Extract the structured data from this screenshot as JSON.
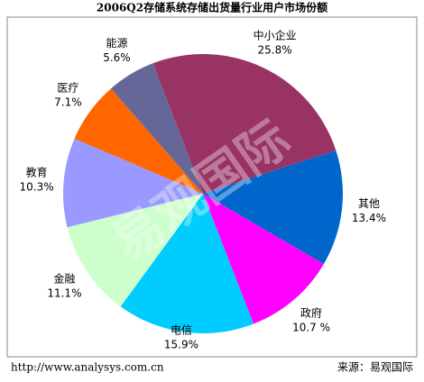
{
  "chart_data": {
    "type": "pie",
    "title": "2006Q2存储系统存储出货量行业用户市场份额",
    "categories": [
      "中小企业",
      "其他",
      "政府",
      "电信",
      "金融",
      "教育",
      "医疗",
      "能源"
    ],
    "values": [
      25.8,
      13.4,
      10.7,
      15.9,
      11.1,
      10.3,
      7.1,
      5.6
    ],
    "value_labels": [
      "25.8%",
      "13.4%",
      "10.7 %",
      "15.9%",
      "11.1%",
      "10.3%",
      "7.1%",
      "5.6%"
    ],
    "colors": [
      "#993366",
      "#0066cc",
      "#ff00ff",
      "#00ccff",
      "#ccffcc",
      "#9999ff",
      "#ff6600",
      "#666699"
    ],
    "watermark": "易观国际",
    "source_url": "http://www.analysys.com.cn",
    "source": "来源：易观国际"
  }
}
